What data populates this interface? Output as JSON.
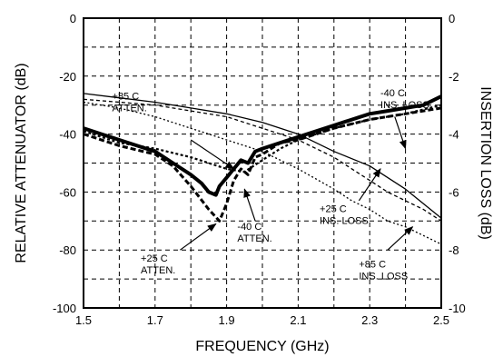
{
  "chart_data": {
    "type": "line",
    "title": "",
    "xlabel": "FREQUENCY (GHz)",
    "ylabel_left": "RELATIVE ATTENUATOR (dB)",
    "ylabel_right": "INSERTION LOSS (dB)",
    "xlim": [
      1.5,
      2.5
    ],
    "ylim_left": [
      -100,
      0
    ],
    "ylim_right": [
      -10,
      0
    ],
    "grid": true,
    "x_ticks": [
      1.5,
      1.7,
      1.9,
      2.1,
      2.3,
      2.5
    ],
    "y_left_ticks": [
      0,
      -20,
      -40,
      -60,
      -80,
      -100
    ],
    "y_right_ticks": [
      0,
      -2,
      -4,
      -6,
      -8,
      -10
    ],
    "series": [
      {
        "axis": "left",
        "style": "thick-solid",
        "label_ref": 0,
        "x": [
          1.5,
          1.55,
          1.6,
          1.65,
          1.7,
          1.75,
          1.8,
          1.83,
          1.85,
          1.87,
          1.88,
          1.9,
          1.92,
          1.94,
          1.96,
          1.98,
          2.0,
          2.05,
          2.1,
          2.15,
          2.2,
          2.25,
          2.3,
          2.35,
          2.4,
          2.45,
          2.5
        ],
        "y": [
          -38,
          -40,
          -42,
          -44,
          -46,
          -50,
          -54,
          -57,
          -60,
          -61,
          -58,
          -55,
          -52,
          -49,
          -50,
          -46,
          -45,
          -43,
          -41,
          -39,
          -37,
          -35,
          -33,
          -32,
          -31,
          -30,
          -27
        ]
      },
      {
        "axis": "left",
        "style": "dashed-heavy",
        "label_ref": 1,
        "x": [
          1.5,
          1.6,
          1.7,
          1.75,
          1.8,
          1.85,
          1.88,
          1.9,
          1.92,
          1.94,
          1.96,
          1.98,
          2.0,
          2.05,
          2.1,
          2.2,
          2.3,
          2.4,
          2.5
        ],
        "y": [
          -40,
          -44,
          -47,
          -51,
          -58,
          -66,
          -70,
          -64,
          -56,
          -52,
          -54,
          -48,
          -47,
          -43,
          -42,
          -38,
          -35,
          -33,
          -31
        ]
      },
      {
        "axis": "left",
        "style": "dashed-fine",
        "label_ref": 2,
        "x": [
          1.5,
          1.6,
          1.7,
          1.8,
          1.85,
          1.9,
          1.95,
          2.0,
          2.05,
          2.1,
          2.2,
          2.3,
          2.4,
          2.5
        ],
        "y": [
          -39,
          -43,
          -45,
          -48,
          -50,
          -52,
          -53,
          -49,
          -45,
          -42,
          -38,
          -35,
          -33,
          -30
        ]
      },
      {
        "axis": "right",
        "style": "thin-solid",
        "label_ref": 3,
        "x": [
          1.5,
          1.6,
          1.7,
          1.8,
          1.9,
          2.0,
          2.1,
          2.2,
          2.3,
          2.4,
          2.5
        ],
        "y": [
          -2.6,
          -2.75,
          -2.9,
          -3.1,
          -3.3,
          -3.6,
          -4.0,
          -4.6,
          -5.1,
          -5.9,
          -6.9
        ]
      },
      {
        "axis": "right",
        "style": "thin-dashed",
        "label_ref": 4,
        "x": [
          1.5,
          1.6,
          1.7,
          1.8,
          1.9,
          2.0,
          2.1,
          2.2,
          2.25,
          2.3,
          2.35,
          2.4,
          2.45,
          2.5
        ],
        "y": [
          -2.8,
          -2.9,
          -3.0,
          -3.2,
          -3.4,
          -3.8,
          -4.2,
          -4.8,
          -5.2,
          -5.6,
          -6.0,
          -6.3,
          -6.6,
          -7.0
        ]
      },
      {
        "axis": "right",
        "style": "thin-dotted",
        "label_ref": 5,
        "x": [
          1.5,
          1.6,
          1.7,
          1.8,
          1.9,
          2.0,
          2.1,
          2.2,
          2.25,
          2.3,
          2.35,
          2.4,
          2.45,
          2.5
        ],
        "y": [
          -2.9,
          -3.1,
          -3.4,
          -3.8,
          -4.2,
          -4.6,
          -5.2,
          -5.9,
          -6.3,
          -6.6,
          -7.0,
          -7.2,
          -7.5,
          -7.8
        ]
      }
    ],
    "annotations": [
      {
        "lines": [
          "+85 C",
          "ATTEN."
        ],
        "x": 1.58,
        "y": -28,
        "arrow_from": [
          1.8,
          -42
        ],
        "arrow_to": [
          1.92,
          -52
        ]
      },
      {
        "lines": [
          "-40 C",
          "ATTEN."
        ],
        "x": 1.93,
        "y": -73,
        "arrow_from": [
          1.98,
          -70
        ],
        "arrow_to": [
          1.95,
          -59
        ]
      },
      {
        "lines": [
          "+25 C",
          "ATTEN."
        ],
        "x": 1.66,
        "y": -84,
        "arrow_from": [
          1.77,
          -80
        ],
        "arrow_to": [
          1.87,
          -71
        ]
      },
      {
        "lines": [
          "-40 C",
          "INS. LOSS"
        ],
        "x": 2.33,
        "y": -27,
        "arrow_from": [
          2.37,
          -34
        ],
        "arrow_to": [
          2.4,
          -45
        ]
      },
      {
        "lines": [
          "+25 C",
          "INS. LOSS"
        ],
        "x": 2.16,
        "y": -67,
        "arrow_from": [
          2.27,
          -63
        ],
        "arrow_to": [
          2.33,
          -52
        ]
      },
      {
        "lines": [
          "+85 C",
          "INS. LOSS"
        ],
        "x": 2.27,
        "y": -86,
        "arrow_from": [
          2.35,
          -80
        ],
        "arrow_to": [
          2.42,
          -72
        ]
      }
    ]
  }
}
